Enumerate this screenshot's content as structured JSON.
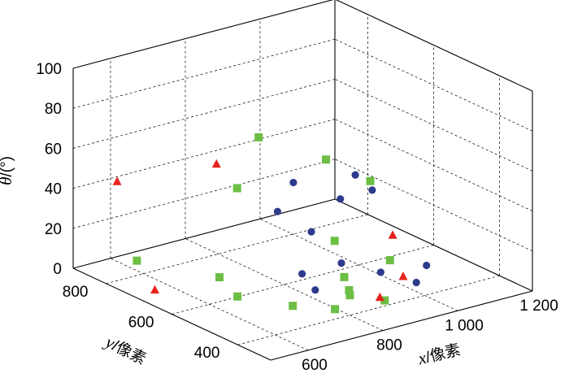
{
  "chart_data": {
    "type": "scatter",
    "projection": "3d",
    "xlabel": {
      "var": "x",
      "unit": "/像素"
    },
    "ylabel": {
      "var": "y",
      "unit": "/像素"
    },
    "zlabel": {
      "var": "θ",
      "unit": "/(°)"
    },
    "xlim": [
      500,
      1200
    ],
    "ylim": [
      300,
      900
    ],
    "zlim": [
      0,
      100
    ],
    "x_ticks": [
      {
        "value": 600,
        "label": "600"
      },
      {
        "value": 800,
        "label": "800"
      },
      {
        "value": 1000,
        "label": "1 000"
      },
      {
        "value": 1200,
        "label": "1 200"
      }
    ],
    "y_ticks": [
      {
        "value": 400,
        "label": "400"
      },
      {
        "value": 600,
        "label": "600"
      },
      {
        "value": 800,
        "label": "800"
      }
    ],
    "z_ticks": [
      {
        "value": 0,
        "label": "0"
      },
      {
        "value": 20,
        "label": "20"
      },
      {
        "value": 40,
        "label": "40"
      },
      {
        "value": 60,
        "label": "60"
      },
      {
        "value": 80,
        "label": "80"
      },
      {
        "value": 100,
        "label": "100"
      }
    ],
    "grid": true,
    "series": [
      {
        "marker": "circle",
        "color": "#2e3a8c",
        "points": [
          [
            920,
            520,
            55
          ],
          [
            880,
            520,
            45
          ],
          [
            930,
            480,
            50
          ],
          [
            900,
            420,
            15
          ],
          [
            960,
            380,
            10
          ],
          [
            1040,
            440,
            10
          ],
          [
            860,
            640,
            45
          ],
          [
            800,
            620,
            35
          ],
          [
            820,
            540,
            30
          ],
          [
            830,
            460,
            20
          ],
          [
            760,
            500,
            15
          ],
          [
            760,
            460,
            10
          ]
        ]
      },
      {
        "marker": "square",
        "color": "#6cbe45",
        "points": [
          [
            820,
            700,
            65
          ],
          [
            780,
            720,
            40
          ],
          [
            960,
            520,
            50
          ],
          [
            1000,
            700,
            45
          ],
          [
            960,
            460,
            15
          ],
          [
            900,
            560,
            20
          ],
          [
            820,
            440,
            15
          ],
          [
            800,
            400,
            10
          ],
          [
            760,
            400,
            5
          ],
          [
            700,
            460,
            5
          ],
          [
            640,
            560,
            5
          ],
          [
            600,
            820,
            5
          ],
          [
            680,
            660,
            5
          ],
          [
            840,
            340,
            10
          ],
          [
            780,
            380,
            15
          ]
        ]
      },
      {
        "marker": "triangle",
        "color": "#e8231e",
        "points": [
          [
            600,
            880,
            40
          ],
          [
            760,
            760,
            50
          ],
          [
            960,
            420,
            10
          ],
          [
            880,
            400,
            5
          ],
          [
            1020,
            520,
            20
          ],
          [
            560,
            720,
            0
          ]
        ]
      }
    ]
  }
}
